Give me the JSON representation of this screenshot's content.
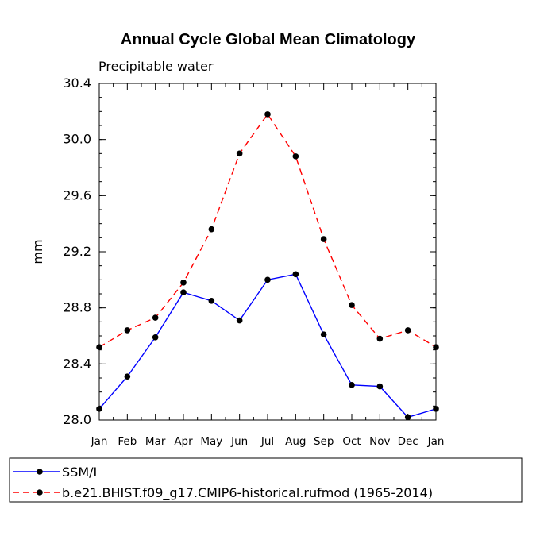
{
  "chart_data": {
    "type": "line",
    "title": "Annual Cycle Global Mean Climatology",
    "subtitle": "Precipitable water",
    "xlabel": "",
    "ylabel": "mm",
    "categories": [
      "Jan",
      "Feb",
      "Mar",
      "Apr",
      "May",
      "Jun",
      "Jul",
      "Aug",
      "Sep",
      "Oct",
      "Nov",
      "Dec",
      "Jan"
    ],
    "ylim": [
      28.0,
      30.4
    ],
    "yticks": [
      28.0,
      28.4,
      28.8,
      29.2,
      29.6,
      30.0,
      30.4
    ],
    "ytick_labels": [
      "28.0",
      "28.4",
      "28.8",
      "29.2",
      "29.6",
      "30.0",
      "30.4"
    ],
    "grid": false,
    "legend_position": "bottom",
    "series": [
      {
        "name": "SSM/I",
        "color": "#0000ff",
        "dash": "solid",
        "values": [
          28.08,
          28.31,
          28.59,
          28.91,
          28.85,
          28.71,
          29.0,
          29.04,
          28.61,
          28.25,
          28.24,
          28.02,
          28.08
        ]
      },
      {
        "name": "b.e21.BHIST.f09_g17.CMIP6-historical.rufmod (1965-2014)",
        "color": "#ff0000",
        "dash": "dashed",
        "values": [
          28.52,
          28.64,
          28.73,
          28.98,
          29.36,
          29.9,
          30.18,
          29.88,
          29.29,
          28.82,
          28.58,
          28.64,
          28.52
        ]
      }
    ]
  }
}
